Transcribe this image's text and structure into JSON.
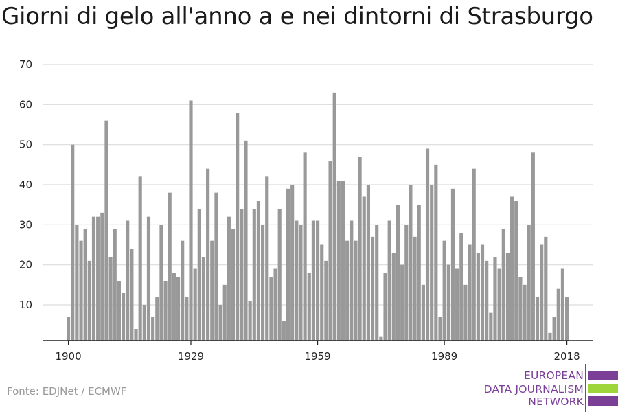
{
  "title": "Giorni di gelo all'anno a e nei dintorni di Strasburgo",
  "source": "Fonte: EDJNet / ECMWF",
  "logo": {
    "lines": [
      "EUROPEAN",
      "DATA JOURNALISM",
      "NETWORK"
    ],
    "colors": {
      "purple": "#7b3f98",
      "green": "#9dd53a"
    }
  },
  "colors": {
    "bar": "#999999",
    "grid": "#dcdcdc",
    "axis": "#222222",
    "text": "#222222"
  },
  "chart_data": {
    "type": "bar",
    "title": "Giorni di gelo all'anno a e nei dintorni di Strasburgo",
    "xlabel": "",
    "ylabel": "",
    "ylim": [
      3,
      72
    ],
    "yticks": [
      10,
      20,
      30,
      40,
      50,
      60,
      70
    ],
    "xticks": [
      1900,
      1929,
      1959,
      1989,
      2018
    ],
    "grid": true,
    "x": [
      1900,
      1901,
      1902,
      1903,
      1904,
      1905,
      1906,
      1907,
      1908,
      1909,
      1910,
      1911,
      1912,
      1913,
      1914,
      1915,
      1916,
      1917,
      1918,
      1919,
      1920,
      1921,
      1922,
      1923,
      1924,
      1925,
      1926,
      1927,
      1928,
      1929,
      1930,
      1931,
      1932,
      1933,
      1934,
      1935,
      1936,
      1937,
      1938,
      1939,
      1940,
      1941,
      1942,
      1943,
      1944,
      1945,
      1946,
      1947,
      1948,
      1949,
      1950,
      1951,
      1952,
      1953,
      1954,
      1955,
      1956,
      1957,
      1958,
      1959,
      1960,
      1961,
      1962,
      1963,
      1964,
      1965,
      1966,
      1967,
      1968,
      1969,
      1970,
      1971,
      1972,
      1973,
      1974,
      1975,
      1976,
      1977,
      1978,
      1979,
      1980,
      1981,
      1982,
      1983,
      1984,
      1985,
      1986,
      1987,
      1988,
      1989,
      1990,
      1991,
      1992,
      1993,
      1994,
      1995,
      1996,
      1997,
      1998,
      1999,
      2000,
      2001,
      2002,
      2003,
      2004,
      2005,
      2006,
      2007,
      2008,
      2009,
      2010,
      2011,
      2012,
      2013,
      2014,
      2015,
      2016,
      2017,
      2018
    ],
    "values": [
      7,
      50,
      30,
      26,
      29,
      21,
      32,
      32,
      33,
      56,
      22,
      29,
      16,
      13,
      31,
      24,
      4,
      42,
      10,
      32,
      7,
      12,
      30,
      16,
      38,
      18,
      17,
      26,
      12,
      61,
      19,
      34,
      22,
      44,
      26,
      38,
      10,
      15,
      32,
      29,
      58,
      34,
      51,
      11,
      34,
      36,
      30,
      42,
      17,
      19,
      34,
      6,
      39,
      40,
      31,
      30,
      48,
      18,
      31,
      31,
      25,
      21,
      46,
      63,
      41,
      41,
      26,
      31,
      26,
      47,
      37,
      40,
      27,
      30,
      2,
      18,
      31,
      23,
      35,
      20,
      30,
      40,
      27,
      35,
      15,
      49,
      40,
      45,
      7,
      26,
      20,
      39,
      19,
      28,
      15,
      25,
      44,
      23,
      25,
      21,
      8,
      22,
      19,
      29,
      23,
      37,
      36,
      17,
      15,
      30,
      48,
      12,
      25,
      27,
      3,
      7,
      14,
      19,
      12
    ]
  }
}
